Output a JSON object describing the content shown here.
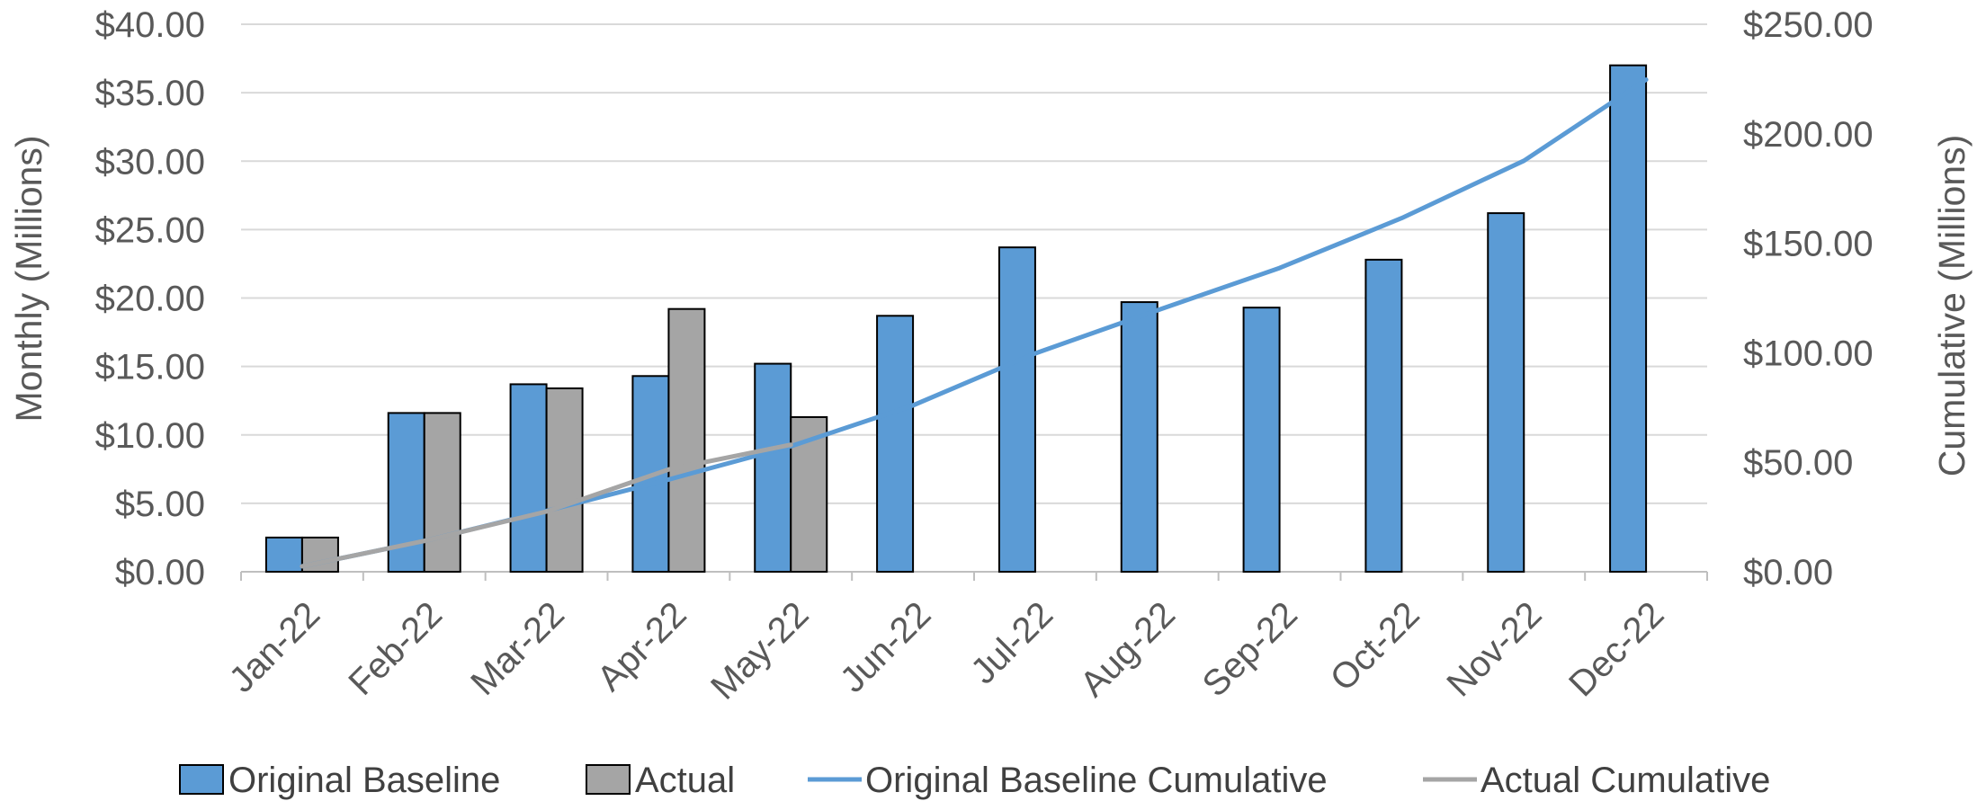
{
  "chart_data": {
    "type": "bar",
    "categories": [
      "Jan-22",
      "Feb-22",
      "Mar-22",
      "Apr-22",
      "May-22",
      "Jun-22",
      "Jul-22",
      "Aug-22",
      "Sep-22",
      "Oct-22",
      "Nov-22",
      "Dec-22"
    ],
    "series": [
      {
        "name": "Original Baseline",
        "kind": "bar",
        "axis": "left",
        "color": "#5b9bd5",
        "values": [
          2.5,
          11.6,
          13.7,
          14.3,
          15.2,
          18.7,
          23.7,
          19.7,
          19.3,
          22.8,
          26.2,
          37.0
        ]
      },
      {
        "name": "Actual",
        "kind": "bar",
        "axis": "left",
        "color": "#a5a5a5",
        "values": [
          2.5,
          11.6,
          13.4,
          19.2,
          11.3,
          null,
          null,
          null,
          null,
          null,
          null,
          null
        ]
      },
      {
        "name": "Original Baseline Cumulative",
        "kind": "line",
        "axis": "right",
        "color": "#5b9bd5",
        "values": [
          2.5,
          14.1,
          27.8,
          42.1,
          57.3,
          76.0,
          99.7,
          119.4,
          138.7,
          161.5,
          187.7,
          224.7
        ]
      },
      {
        "name": "Actual Cumulative",
        "kind": "line",
        "axis": "right",
        "color": "#a5a5a5",
        "values": [
          2.5,
          14.1,
          27.5,
          46.7,
          58.0,
          null,
          null,
          null,
          null,
          null,
          null,
          null
        ]
      }
    ],
    "ylabel": "Monthly (Millions)",
    "y2label": "Cumulative (Millions)",
    "ylim": [
      0,
      40
    ],
    "y2lim": [
      0,
      250
    ],
    "yticks": [
      "$0.00",
      "$5.00",
      "$10.00",
      "$15.00",
      "$20.00",
      "$25.00",
      "$30.00",
      "$35.00",
      "$40.00"
    ],
    "y2ticks": [
      "$0.00",
      "$50.00",
      "$100.00",
      "$150.00",
      "$200.00",
      "$250.00"
    ],
    "grid": true,
    "legend_position": "bottom"
  }
}
